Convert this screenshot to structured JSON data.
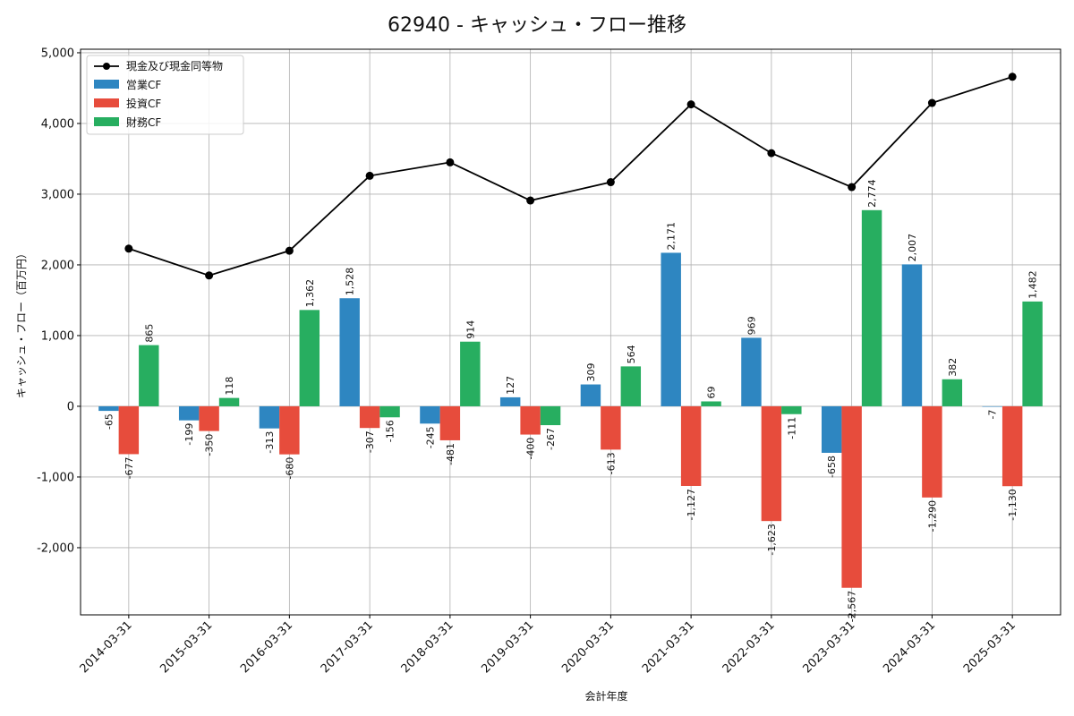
{
  "chart_data": {
    "type": "bar",
    "title": "62940 - キャッシュ・フロー推移",
    "xlabel": "会計年度",
    "ylabel": "キャッシュ・フロー（百万円）",
    "ylim": [
      -2950,
      5050
    ],
    "yticks": [
      -2000,
      -1000,
      0,
      1000,
      2000,
      3000,
      4000,
      5000
    ],
    "ytick_labels": [
      "-2,000",
      "-1,000",
      "0",
      "1,000",
      "2,000",
      "3,000",
      "4,000",
      "5,000"
    ],
    "grid": true,
    "legend_position": "top-left",
    "categories": [
      "2014-03-31",
      "2015-03-31",
      "2016-03-31",
      "2017-03-31",
      "2018-03-31",
      "2019-03-31",
      "2020-03-31",
      "2021-03-31",
      "2022-03-31",
      "2023-03-31",
      "2024-03-31",
      "2025-03-31"
    ],
    "line_series": {
      "name": "現金及び現金同等物",
      "color": "#000000",
      "values": [
        2230,
        1850,
        2200,
        3260,
        3450,
        2910,
        3170,
        4270,
        3580,
        3100,
        4290,
        4660
      ]
    },
    "series": [
      {
        "name": "営業CF",
        "color": "#2e86c1",
        "values": [
          -65,
          -199,
          -313,
          1528,
          -245,
          127,
          309,
          2171,
          969,
          -658,
          2007,
          -7
        ],
        "labels": [
          "-65",
          "-199",
          "-313",
          "1,528",
          "-245",
          "127",
          "309",
          "2,171",
          "969",
          "-658",
          "2,007",
          "-7"
        ]
      },
      {
        "name": "投資CF",
        "color": "#e74c3c",
        "values": [
          -677,
          -350,
          -680,
          -307,
          -481,
          -400,
          -613,
          -1127,
          -1623,
          -2567,
          -1290,
          -1130
        ],
        "labels": [
          "-677",
          "-350",
          "-680",
          "-307",
          "-481",
          "-400",
          "-613",
          "-1,127",
          "-1,623",
          "-2,567",
          "-1,290",
          "-1,130"
        ]
      },
      {
        "name": "財務CF",
        "color": "#27ae60",
        "values": [
          865,
          118,
          1362,
          -156,
          914,
          -267,
          564,
          69,
          -111,
          2774,
          382,
          1482
        ],
        "labels": [
          "865",
          "118",
          "1,362",
          "-156",
          "914",
          "-267",
          "564",
          "69",
          "-111",
          "2,774",
          "382",
          "1,482"
        ]
      }
    ]
  }
}
